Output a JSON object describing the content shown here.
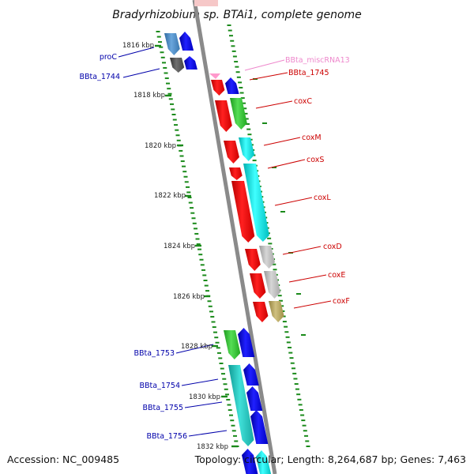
{
  "title": "Bradyrhizobium sp. BTAi1, complete genome",
  "footer": {
    "accession": "Accession: NC_009485",
    "topology": "Topology: circular; Length: 8,264,687 bp; Genes: 7,463"
  },
  "kbp_labels": [
    "1816 kbp",
    "1818 kbp",
    "1820 kbp",
    "1822 kbp",
    "1824 kbp",
    "1826 kbp",
    "1828 kbp",
    "1830 kbp",
    "1832 kbp"
  ],
  "gene_labels": {
    "proC": "proC",
    "bbta_1744": "BBta_1744",
    "misc_rna": "BBta_miscRNA13",
    "bbta_1745": "BBta_1745",
    "coxC": "coxC",
    "coxM": "coxM",
    "coxS": "coxS",
    "coxL": "coxL",
    "coxD": "coxD",
    "coxE": "coxE",
    "coxF": "coxF",
    "bbta_1753": "BBta_1753",
    "bbta_1754": "BBta_1754",
    "bbta_1755": "BBta_1755",
    "bbta_1756": "BBta_1756"
  },
  "colors": {
    "backbone": "#8a8a8a",
    "tick_green": "#1a8a1a",
    "label_red": "#cc0000",
    "label_blue": "#0000aa",
    "label_pink": "#ee88cc",
    "gene_red": "#ff0000",
    "gene_blue": "#0000ff",
    "gene_cyan": "#00e0e0",
    "gene_green": "#33cc33",
    "gene_steel": "#4a8ac8",
    "gene_darkgray": "#555555",
    "gene_lightgray": "#bbbbbb",
    "gene_khaki": "#b8a860",
    "gene_teal": "#20c8c0",
    "gene_pink": "#ff99cc"
  }
}
